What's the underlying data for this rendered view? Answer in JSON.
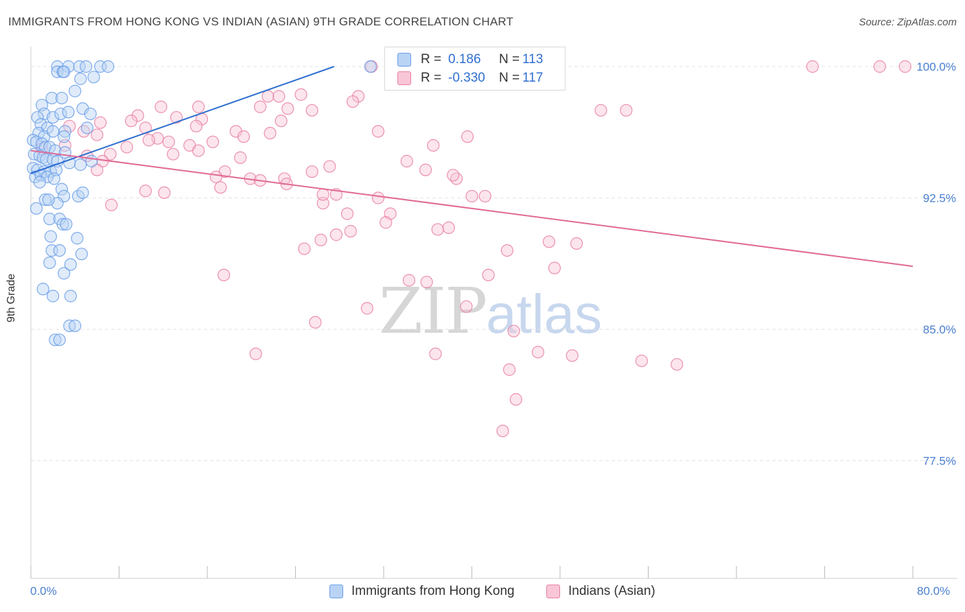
{
  "title": "IMMIGRANTS FROM HONG KONG VS INDIAN (ASIAN) 9TH GRADE CORRELATION CHART",
  "source": "Source: ZipAtlas.com",
  "watermark": {
    "zip": "ZIP",
    "atlas": "atlas"
  },
  "legend": {
    "r_label": "R =",
    "n_label": "N =",
    "series1": {
      "r": "0.186",
      "n": "113",
      "color": "#6a9ee8",
      "fill": "#b9d3f5"
    },
    "series2": {
      "r": "-0.330",
      "n": "117",
      "color": "#e87fa3",
      "fill": "#f8c6d7"
    }
  },
  "bottom_legend": {
    "s1": "Immigrants from Hong Kong",
    "s2": "Indians (Asian)"
  },
  "chart_data": {
    "type": "scatter",
    "ylabel": "9th Grade",
    "x_ticks": [
      "0.0%",
      "80.0%"
    ],
    "y_ticks": [
      "100.0%",
      "92.5%",
      "85.0%",
      "77.5%"
    ],
    "xlim": [
      0,
      80
    ],
    "ylim": [
      70.5,
      101
    ],
    "series": [
      {
        "name": "Immigrants from Hong Kong",
        "color": "#6a9ee8",
        "trend": {
          "x": [
            0,
            27.5
          ],
          "y": [
            93.9,
            100.0
          ]
        },
        "points": [
          [
            2.4,
            100
          ],
          [
            3.4,
            100
          ],
          [
            4.4,
            100
          ],
          [
            5.0,
            100
          ],
          [
            6.3,
            100
          ],
          [
            7.0,
            100
          ],
          [
            2.4,
            99.7
          ],
          [
            2.9,
            99.7
          ],
          [
            3.0,
            99.7
          ],
          [
            4.5,
            99.3
          ],
          [
            5.7,
            99.4
          ],
          [
            4.0,
            98.6
          ],
          [
            1.9,
            98.2
          ],
          [
            2.8,
            98.2
          ],
          [
            1.0,
            97.8
          ],
          [
            4.7,
            97.6
          ],
          [
            1.2,
            97.3
          ],
          [
            2.0,
            97.1
          ],
          [
            2.7,
            97.3
          ],
          [
            3.4,
            97.4
          ],
          [
            5.4,
            97.3
          ],
          [
            0.6,
            97.1
          ],
          [
            0.9,
            96.7
          ],
          [
            1.5,
            96.5
          ],
          [
            3.1,
            96.3
          ],
          [
            5.1,
            96.5
          ],
          [
            0.7,
            96.2
          ],
          [
            1.2,
            96.0
          ],
          [
            2.0,
            96.3
          ],
          [
            3.0,
            96.0
          ],
          [
            0.2,
            95.8
          ],
          [
            0.5,
            95.7
          ],
          [
            1.0,
            95.6
          ],
          [
            1.3,
            95.4
          ],
          [
            1.7,
            95.4
          ],
          [
            2.2,
            95.2
          ],
          [
            3.1,
            95.1
          ],
          [
            0.3,
            95.0
          ],
          [
            0.8,
            94.9
          ],
          [
            1.1,
            94.8
          ],
          [
            1.4,
            94.7
          ],
          [
            2.0,
            94.7
          ],
          [
            2.4,
            94.6
          ],
          [
            3.5,
            94.5
          ],
          [
            4.5,
            94.4
          ],
          [
            5.5,
            94.6
          ],
          [
            0.2,
            94.2
          ],
          [
            0.6,
            94.1
          ],
          [
            1.2,
            94.0
          ],
          [
            1.8,
            94.0
          ],
          [
            2.3,
            94.1
          ],
          [
            0.4,
            93.7
          ],
          [
            0.9,
            93.8
          ],
          [
            1.5,
            93.7
          ],
          [
            2.1,
            93.6
          ],
          [
            0.8,
            93.4
          ],
          [
            2.8,
            93.0
          ],
          [
            3.0,
            92.6
          ],
          [
            4.3,
            92.6
          ],
          [
            4.7,
            92.8
          ],
          [
            1.3,
            92.4
          ],
          [
            2.4,
            92.2
          ],
          [
            1.6,
            92.4
          ],
          [
            0.5,
            91.9
          ],
          [
            1.7,
            91.3
          ],
          [
            2.6,
            91.3
          ],
          [
            2.9,
            91.0
          ],
          [
            3.2,
            91.0
          ],
          [
            1.8,
            90.3
          ],
          [
            4.2,
            90.2
          ],
          [
            1.9,
            89.5
          ],
          [
            2.6,
            89.5
          ],
          [
            4.6,
            89.3
          ],
          [
            1.7,
            88.8
          ],
          [
            3.0,
            88.2
          ],
          [
            3.6,
            88.7
          ],
          [
            1.1,
            87.3
          ],
          [
            2.0,
            86.9
          ],
          [
            3.6,
            86.9
          ],
          [
            3.5,
            85.2
          ],
          [
            4.0,
            85.2
          ],
          [
            2.2,
            84.4
          ],
          [
            2.6,
            84.4
          ],
          [
            30.8,
            100
          ]
        ]
      },
      {
        "name": "Indians (Asian)",
        "color": "#e87fa3",
        "trend": {
          "x": [
            0,
            80
          ],
          "y": [
            95.2,
            88.6
          ]
        },
        "points": [
          [
            30.9,
            100
          ],
          [
            47.8,
            100
          ],
          [
            70.9,
            100
          ],
          [
            77.0,
            100
          ],
          [
            79.3,
            100
          ],
          [
            21.5,
            98.3
          ],
          [
            22.5,
            98.3
          ],
          [
            24.5,
            98.4
          ],
          [
            29.7,
            98.3
          ],
          [
            29.2,
            98.0
          ],
          [
            11.8,
            97.7
          ],
          [
            15.2,
            97.7
          ],
          [
            20.8,
            97.7
          ],
          [
            23.3,
            97.6
          ],
          [
            25.5,
            97.5
          ],
          [
            9.7,
            97.2
          ],
          [
            13.2,
            97.1
          ],
          [
            15.5,
            97.0
          ],
          [
            9.1,
            96.9
          ],
          [
            6.3,
            96.8
          ],
          [
            22.7,
            96.9
          ],
          [
            51.7,
            97.5
          ],
          [
            3.5,
            96.6
          ],
          [
            15.0,
            96.6
          ],
          [
            10.4,
            96.5
          ],
          [
            4.8,
            96.3
          ],
          [
            18.6,
            96.3
          ],
          [
            21.7,
            96.2
          ],
          [
            6.0,
            96.1
          ],
          [
            11.5,
            95.9
          ],
          [
            10.7,
            95.8
          ],
          [
            12.5,
            95.7
          ],
          [
            16.5,
            95.7
          ],
          [
            14.4,
            95.5
          ],
          [
            19.3,
            96.0
          ],
          [
            31.5,
            96.3
          ],
          [
            39.6,
            96.0
          ],
          [
            8.7,
            95.4
          ],
          [
            3.1,
            95.5
          ],
          [
            15.2,
            95.2
          ],
          [
            36.5,
            95.5
          ],
          [
            1.0,
            95.3
          ],
          [
            7.2,
            95.0
          ],
          [
            12.9,
            95.0
          ],
          [
            5.1,
            94.9
          ],
          [
            19.0,
            94.8
          ],
          [
            6.5,
            94.6
          ],
          [
            34.1,
            94.6
          ],
          [
            27.1,
            94.3
          ],
          [
            6.0,
            94.1
          ],
          [
            17.6,
            94.0
          ],
          [
            25.5,
            94.0
          ],
          [
            35.8,
            94.1
          ],
          [
            16.8,
            93.7
          ],
          [
            19.9,
            93.6
          ],
          [
            20.8,
            93.5
          ],
          [
            23.0,
            93.6
          ],
          [
            23.2,
            93.3
          ],
          [
            38.6,
            93.6
          ],
          [
            38.3,
            93.8
          ],
          [
            17.2,
            93.1
          ],
          [
            10.4,
            92.9
          ],
          [
            12.1,
            92.8
          ],
          [
            40.0,
            92.6
          ],
          [
            41.2,
            92.6
          ],
          [
            26.5,
            92.2
          ],
          [
            26.5,
            92.7
          ],
          [
            27.7,
            92.7
          ],
          [
            31.5,
            92.5
          ],
          [
            7.3,
            92.1
          ],
          [
            28.7,
            91.6
          ],
          [
            32.6,
            91.6
          ],
          [
            32.2,
            91.1
          ],
          [
            29.0,
            90.6
          ],
          [
            27.7,
            90.4
          ],
          [
            26.3,
            90.1
          ],
          [
            36.9,
            90.7
          ],
          [
            37.9,
            90.8
          ],
          [
            47.0,
            90.0
          ],
          [
            49.5,
            89.9
          ],
          [
            24.8,
            89.6
          ],
          [
            43.2,
            89.5
          ],
          [
            17.5,
            88.1
          ],
          [
            34.3,
            87.8
          ],
          [
            35.9,
            87.7
          ],
          [
            41.5,
            88.1
          ],
          [
            47.5,
            88.5
          ],
          [
            30.5,
            86.2
          ],
          [
            39.5,
            86.3
          ],
          [
            25.8,
            85.4
          ],
          [
            43.8,
            84.9
          ],
          [
            20.4,
            83.6
          ],
          [
            36.7,
            83.6
          ],
          [
            46.0,
            83.7
          ],
          [
            49.1,
            83.5
          ],
          [
            43.4,
            82.7
          ],
          [
            55.4,
            83.2
          ],
          [
            58.6,
            83.0
          ],
          [
            44.0,
            81.0
          ],
          [
            42.8,
            79.2
          ],
          [
            54.0,
            97.5
          ]
        ]
      }
    ]
  }
}
